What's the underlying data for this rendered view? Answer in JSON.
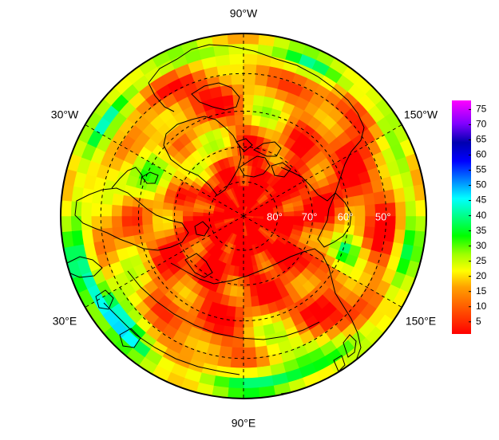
{
  "map": {
    "projection": "north-polar-stereographic",
    "longitude_labels": [
      {
        "key": "top",
        "text": "90°W"
      },
      {
        "key": "upper-right",
        "text": "150°W"
      },
      {
        "key": "lower-right",
        "text": "150°E"
      },
      {
        "key": "bottom",
        "text": "90°E"
      },
      {
        "key": "lower-left",
        "text": "30°E"
      },
      {
        "key": "upper-left",
        "text": "30°W"
      }
    ],
    "latitude_labels": [
      {
        "lat": 80,
        "text": "80°"
      },
      {
        "lat": 70,
        "text": "70°"
      },
      {
        "lat": 60,
        "text": "60°"
      },
      {
        "lat": 50,
        "text": "50°"
      }
    ],
    "graticule_latitudes": [
      80,
      70,
      60,
      50
    ],
    "coastlines": "black"
  },
  "colorbar": {
    "min": 1,
    "max": 78,
    "ticks": [
      "5",
      "10",
      "15",
      "20",
      "25",
      "30",
      "35",
      "40",
      "45",
      "50",
      "55",
      "60",
      "65",
      "70",
      "75"
    ],
    "colormap": [
      "#ff0000",
      "#ff4000",
      "#ff8000",
      "#ffbf00",
      "#ffff00",
      "#bfff00",
      "#80ff00",
      "#00ff00",
      "#00ffbf",
      "#00ffff",
      "#00bfff",
      "#0080ff",
      "#0000ff",
      "#0000bf",
      "#8000ff",
      "#c000ff",
      "#ff00ff"
    ]
  }
}
